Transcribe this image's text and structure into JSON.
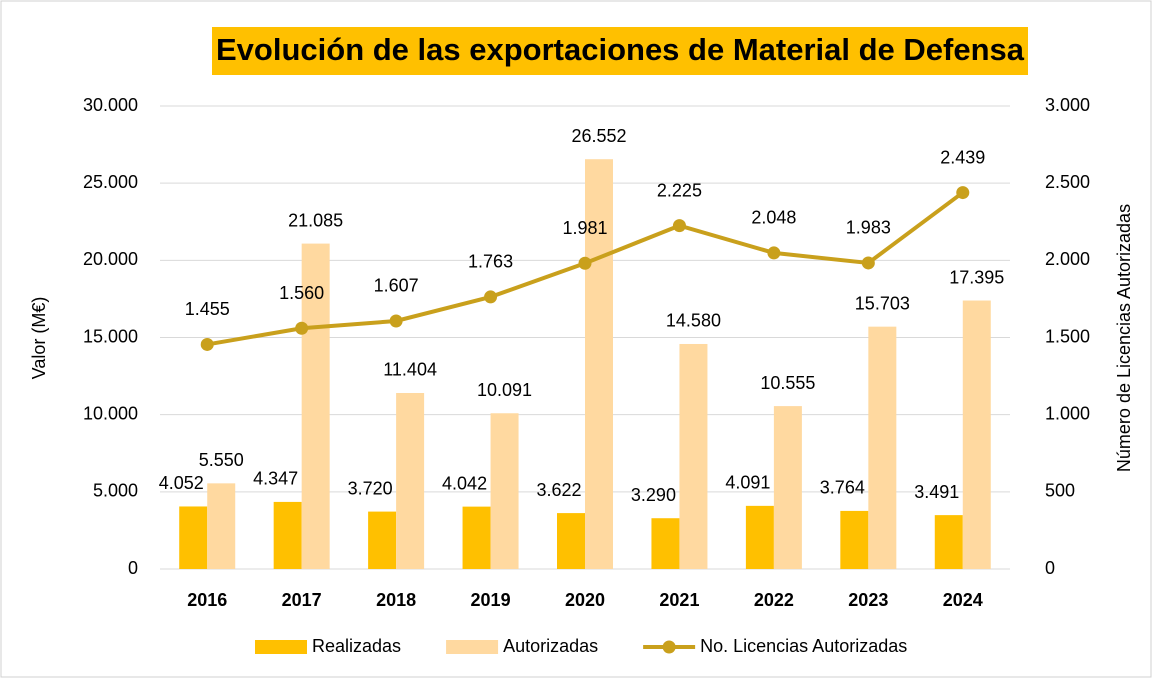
{
  "chart_data": {
    "type": "bar",
    "title": "Evolución de las exportaciones de Material de Defensa",
    "ylabel": "Valor (M€)",
    "y2label": "Número de Licencias Autorizadas",
    "categories": [
      "2016",
      "2017",
      "2018",
      "2019",
      "2020",
      "2021",
      "2022",
      "2023",
      "2024"
    ],
    "series": [
      {
        "name": "Realizadas",
        "type": "bar",
        "color": "#ffc000",
        "values": [
          4052,
          4347,
          3720,
          4042,
          3622,
          3290,
          4091,
          3764,
          3491
        ],
        "value_labels": [
          "4.052",
          "4.347",
          "3.720",
          "4.042",
          "3.622",
          "3.290",
          "4.091",
          "3.764",
          "3.491"
        ]
      },
      {
        "name": "Autorizadas",
        "type": "bar",
        "color": "#ffd9a0",
        "values": [
          5550,
          21085,
          11404,
          10091,
          26552,
          14580,
          10555,
          15703,
          17395
        ],
        "value_labels": [
          "5.550",
          "21.085",
          "11.404",
          "10.091",
          "26.552",
          "14.580",
          "10.555",
          "15.703",
          "17.395"
        ]
      },
      {
        "name": "No. Licencias Autorizadas",
        "type": "line",
        "axis": "y2",
        "color": "#c9a01c",
        "values": [
          1455,
          1560,
          1607,
          1763,
          1981,
          2225,
          2048,
          1983,
          2439
        ],
        "value_labels": [
          "1.455",
          "1.560",
          "1.607",
          "1.763",
          "1.981",
          "2.225",
          "2.048",
          "1.983",
          "2.439"
        ]
      }
    ],
    "ylim": [
      0,
      30000
    ],
    "yticks": [
      0,
      {
        "value": 5000,
        "label": "5.000"
      },
      {
        "value": 10000,
        "label": "10.000"
      },
      {
        "value": 15000,
        "label": "15.000"
      },
      {
        "value": 20000,
        "label": "20.000"
      },
      {
        "value": 25000,
        "label": "25.000"
      },
      {
        "value": 30000,
        "label": "30.000"
      }
    ],
    "y2lim": [
      0,
      3000
    ],
    "y2ticks": [
      0,
      500,
      {
        "value": 1000,
        "label": "1.000"
      },
      {
        "value": 1500,
        "label": "1.500"
      },
      {
        "value": 2000,
        "label": "2.000"
      },
      {
        "value": 2500,
        "label": "2.500"
      },
      {
        "value": 3000,
        "label": "3.000"
      }
    ],
    "grid": true,
    "legend": "bottom"
  }
}
